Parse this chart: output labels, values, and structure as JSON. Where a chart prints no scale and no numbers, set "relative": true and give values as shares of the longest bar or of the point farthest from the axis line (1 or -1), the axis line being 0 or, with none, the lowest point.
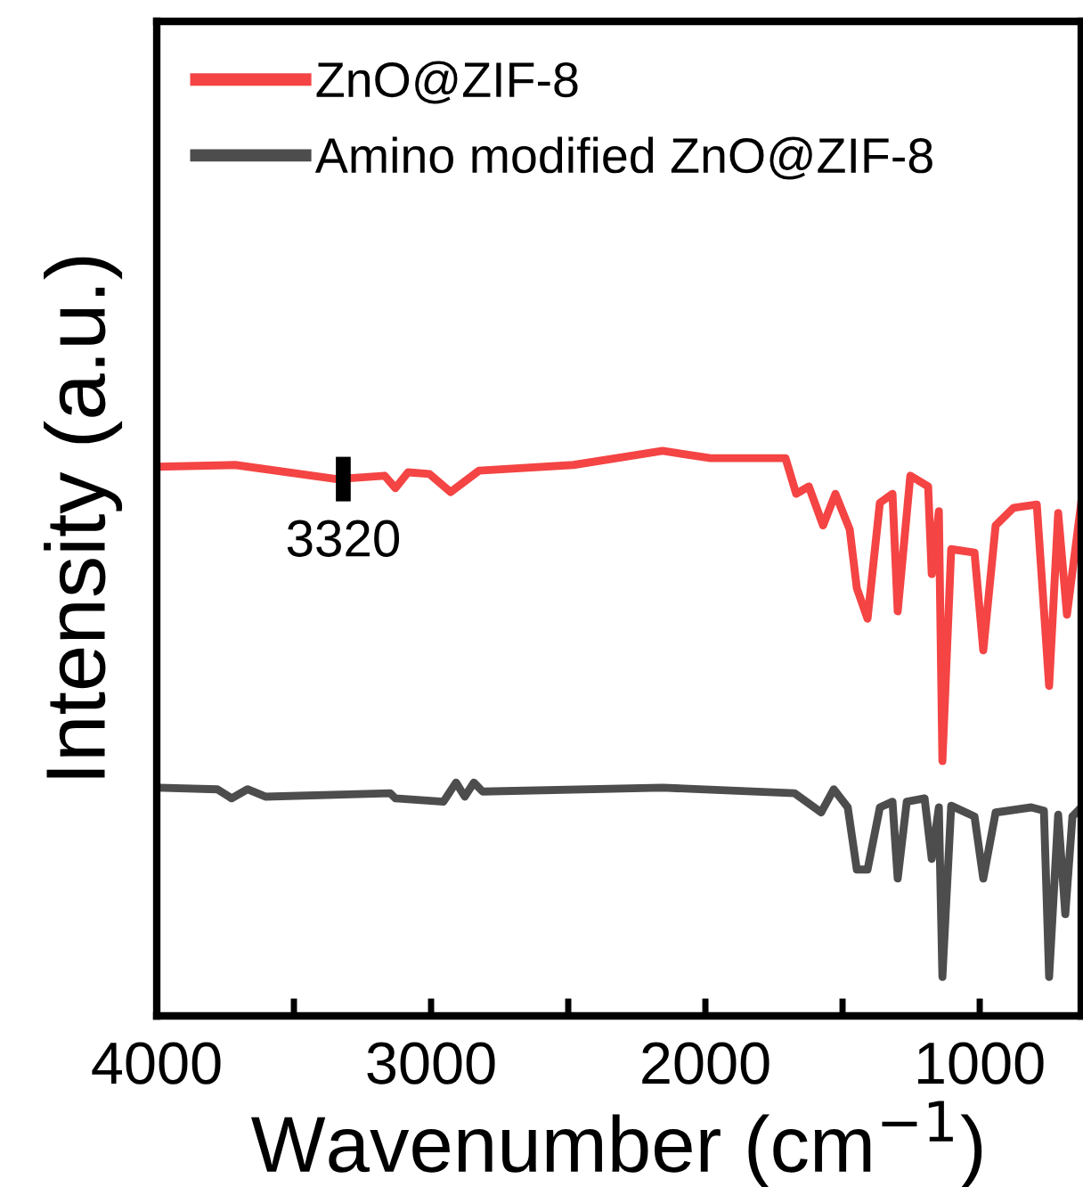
{
  "chart_data": {
    "type": "line",
    "xlabel": "Wavenumber (cm$^{−1}$)",
    "ylabel": "Intensity (a.u.)",
    "relative": true,
    "legend": "top left",
    "grid": false,
    "marker": "none",
    "line_style": "solid",
    "xlim": [
      4000,
      630
    ],
    "xticks": [
      4000,
      {
        "value": 3500,
        "label": null
      },
      3000,
      {
        "value": 2500,
        "label": null
      },
      2000,
      {
        "value": 1500,
        "label": null
      },
      1000
    ],
    "annotations": [
      {
        "text": "3320",
        "x": 3320,
        "y": 0.95
      }
    ],
    "series": [
      {
        "name": "ZnO@ZIF-8",
        "color": "#f44444",
        "x": [
          3994,
          3714,
          3344,
          3169,
          3130,
          3084,
          3006,
          2929,
          2825,
          2481,
          2156,
          1981,
          1708,
          1669,
          1623,
          1571,
          1526,
          1474,
          1448,
          1409,
          1364,
          1318,
          1299,
          1253,
          1188,
          1175,
          1149,
          1136,
          1104,
          1019,
          987,
          942,
          877,
          792,
          747,
          714,
          682,
          630
        ],
        "values": [
          0.972,
          0.975,
          0.95,
          0.956,
          0.934,
          0.962,
          0.959,
          0.927,
          0.965,
          0.975,
          1,
          0.987,
          0.987,
          0.924,
          0.937,
          0.868,
          0.924,
          0.861,
          0.757,
          0.703,
          0.908,
          0.924,
          0.716,
          0.956,
          0.937,
          0.782,
          0.893,
          0.451,
          0.826,
          0.82,
          0.647,
          0.868,
          0.899,
          0.905,
          0.584,
          0.89,
          0.71,
          0.908
        ]
      },
      {
        "name": "Amino modified ZnO@ZIF-8",
        "color": "#4d4d4d",
        "x": [
          3994,
          3779,
          3727,
          3669,
          3604,
          3149,
          3130,
          2955,
          2909,
          2877,
          2844,
          2812,
          2156,
          1675,
          1578,
          1532,
          1481,
          1448,
          1409,
          1364,
          1318,
          1299,
          1266,
          1201,
          1175,
          1149,
          1136,
          1104,
          1019,
          987,
          942,
          812,
          766,
          747,
          714,
          688,
          662,
          630
        ],
        "values": [
          0.404,
          0.401,
          0.385,
          0.401,
          0.388,
          0.394,
          0.385,
          0.379,
          0.413,
          0.388,
          0.413,
          0.397,
          0.404,
          0.394,
          0.36,
          0.401,
          0.369,
          0.259,
          0.259,
          0.369,
          0.379,
          0.243,
          0.379,
          0.385,
          0.278,
          0.369,
          0.069,
          0.372,
          0.353,
          0.243,
          0.36,
          0.369,
          0.363,
          0.069,
          0.356,
          0.18,
          0.353,
          0.369
        ]
      }
    ]
  }
}
